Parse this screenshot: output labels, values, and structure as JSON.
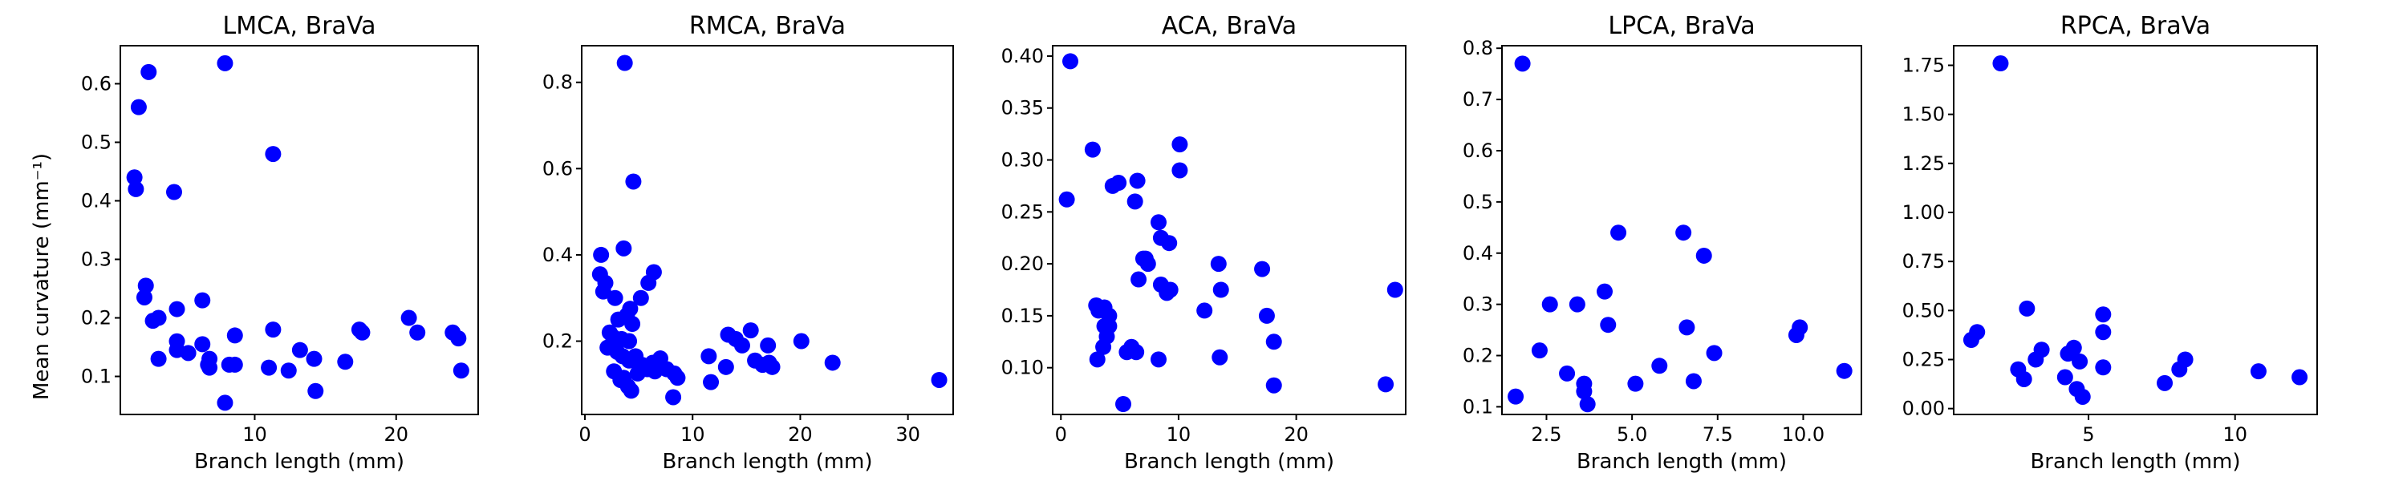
{
  "chart_data": [
    {
      "type": "scatter",
      "title": "LMCA, BraVa",
      "xlabel": "Branch length (mm)",
      "ylabel": "Mean curvature (mm⁻¹)",
      "xlim": [
        0.5,
        25.8
      ],
      "ylim": [
        0.035,
        0.665
      ],
      "xticks": [
        10,
        20
      ],
      "yticks": [
        0.1,
        0.2,
        0.3,
        0.4,
        0.5,
        0.6
      ],
      "ytick_labels": [
        "0.1",
        "0.2",
        "0.3",
        "0.4",
        "0.5",
        "0.6"
      ],
      "marker_color": "#0000ff",
      "x": [
        1.8,
        7.9,
        1.5,
        1.6,
        4.3,
        11.3,
        2.5,
        2.3,
        2.2,
        6.3,
        4.5,
        3.2,
        2.8,
        4.5,
        6.3,
        6.8,
        8.6,
        11.3,
        6.7,
        5.3,
        6.8,
        3.2,
        4.5,
        8.2,
        8.6,
        11.0,
        12.4,
        13.2,
        14.2,
        16.4,
        17.4,
        17.6,
        20.9,
        21.5,
        24.0,
        24.4,
        24.6,
        14.3,
        7.9
      ],
      "y": [
        0.56,
        0.635,
        0.44,
        0.42,
        0.415,
        0.48,
        0.62,
        0.255,
        0.235,
        0.23,
        0.215,
        0.2,
        0.195,
        0.16,
        0.155,
        0.13,
        0.17,
        0.18,
        0.12,
        0.14,
        0.115,
        0.13,
        0.145,
        0.12,
        0.12,
        0.115,
        0.11,
        0.145,
        0.13,
        0.125,
        0.18,
        0.175,
        0.2,
        0.175,
        0.175,
        0.165,
        0.11,
        0.075,
        0.055
      ]
    },
    {
      "type": "scatter",
      "title": "RMCA, BraVa",
      "xlabel": "Branch length (mm)",
      "ylabel": "",
      "xlim": [
        -0.3,
        34.2
      ],
      "ylim": [
        0.03,
        0.885
      ],
      "xticks": [
        0,
        10,
        20,
        30
      ],
      "yticks": [
        0.2,
        0.4,
        0.6,
        0.8
      ],
      "ytick_labels": [
        "0.2",
        "0.4",
        "0.6",
        "0.8"
      ],
      "marker_color": "#0000ff",
      "x": [
        3.7,
        4.5,
        1.5,
        3.6,
        1.4,
        1.9,
        1.7,
        2.8,
        6.4,
        5.9,
        4.2,
        5.2,
        3.1,
        3.9,
        4.4,
        2.3,
        2.6,
        3.4,
        4.1,
        2.1,
        3.0,
        3.5,
        4.1,
        4.7,
        5.3,
        5.8,
        2.7,
        3.3,
        3.6,
        4.0,
        4.9,
        6.3,
        7.0,
        7.6,
        8.3,
        8.6,
        8.2,
        6.5,
        4.3,
        11.5,
        11.7,
        13.3,
        13.1,
        14.0,
        14.6,
        15.4,
        15.8,
        16.5,
        17.1,
        17.4,
        17.0,
        20.1,
        23.0,
        32.9
      ],
      "y": [
        0.845,
        0.57,
        0.4,
        0.415,
        0.355,
        0.335,
        0.315,
        0.3,
        0.36,
        0.335,
        0.275,
        0.3,
        0.25,
        0.26,
        0.24,
        0.22,
        0.21,
        0.205,
        0.2,
        0.185,
        0.175,
        0.165,
        0.155,
        0.165,
        0.145,
        0.135,
        0.13,
        0.11,
        0.115,
        0.095,
        0.125,
        0.15,
        0.16,
        0.135,
        0.125,
        0.115,
        0.07,
        0.13,
        0.085,
        0.165,
        0.105,
        0.215,
        0.14,
        0.205,
        0.19,
        0.225,
        0.155,
        0.145,
        0.15,
        0.14,
        0.19,
        0.2,
        0.15,
        0.11
      ]
    },
    {
      "type": "scatter",
      "title": "ACA, BraVa",
      "xlabel": "Branch length (mm)",
      "ylabel": "",
      "xlim": [
        -0.7,
        29.3
      ],
      "ylim": [
        0.055,
        0.41
      ],
      "xticks": [
        0,
        10,
        20
      ],
      "yticks": [
        0.1,
        0.15,
        0.2,
        0.25,
        0.3,
        0.35,
        0.4
      ],
      "ytick_labels": [
        "0.10",
        "0.15",
        "0.20",
        "0.25",
        "0.30",
        "0.35",
        "0.40"
      ],
      "marker_color": "#0000ff",
      "x": [
        0.8,
        0.5,
        2.7,
        3.0,
        3.7,
        4.4,
        4.9,
        4.1,
        6.5,
        6.3,
        7.2,
        8.3,
        8.5,
        9.3,
        9.0,
        10.1,
        10.1,
        7.0,
        7.4,
        6.6,
        8.5,
        9.2,
        3.2,
        4.1,
        3.9,
        3.7,
        3.6,
        3.1,
        5.6,
        6.0,
        6.4,
        8.3,
        5.3,
        12.2,
        13.4,
        13.6,
        13.5,
        17.1,
        17.5,
        18.1,
        18.1,
        27.6,
        28.4
      ],
      "y": [
        0.395,
        0.262,
        0.31,
        0.16,
        0.158,
        0.275,
        0.278,
        0.14,
        0.28,
        0.26,
        0.205,
        0.24,
        0.225,
        0.175,
        0.172,
        0.315,
        0.29,
        0.205,
        0.2,
        0.185,
        0.18,
        0.22,
        0.155,
        0.15,
        0.13,
        0.14,
        0.12,
        0.108,
        0.115,
        0.12,
        0.115,
        0.108,
        0.065,
        0.155,
        0.2,
        0.175,
        0.11,
        0.195,
        0.15,
        0.125,
        0.083,
        0.084,
        0.175
      ]
    },
    {
      "type": "scatter",
      "title": "LPCA, BraVa",
      "xlabel": "Branch length (mm)",
      "ylabel": "",
      "xlim": [
        1.2,
        11.7
      ],
      "ylim": [
        0.085,
        0.805
      ],
      "xticks": [
        2.5,
        5.0,
        7.5,
        10.0
      ],
      "xtick_labels": [
        "2.5",
        "5.0",
        "7.5",
        "10.0"
      ],
      "yticks": [
        0.1,
        0.2,
        0.3,
        0.4,
        0.5,
        0.6,
        0.7,
        0.8
      ],
      "ytick_labels": [
        "0.1",
        "0.2",
        "0.3",
        "0.4",
        "0.5",
        "0.6",
        "0.7",
        "0.8"
      ],
      "marker_color": "#0000ff",
      "x": [
        1.8,
        1.6,
        2.3,
        2.6,
        3.1,
        3.4,
        3.6,
        3.6,
        3.7,
        4.2,
        4.3,
        4.6,
        5.1,
        5.8,
        6.5,
        6.6,
        6.8,
        7.1,
        7.4,
        9.8,
        9.9,
        11.2
      ],
      "y": [
        0.77,
        0.12,
        0.21,
        0.3,
        0.165,
        0.3,
        0.145,
        0.13,
        0.105,
        0.325,
        0.26,
        0.44,
        0.145,
        0.18,
        0.44,
        0.255,
        0.15,
        0.395,
        0.205,
        0.24,
        0.255,
        0.17
      ]
    },
    {
      "type": "scatter",
      "title": "RPCA, BraVa",
      "xlabel": "Branch length (mm)",
      "ylabel": "",
      "xlim": [
        0.4,
        12.8
      ],
      "ylim": [
        -0.03,
        1.85
      ],
      "xticks": [
        5,
        10
      ],
      "yticks": [
        0.0,
        0.25,
        0.5,
        0.75,
        1.0,
        1.25,
        1.5,
        1.75
      ],
      "ytick_labels": [
        "0.00",
        "0.25",
        "0.50",
        "0.75",
        "1.00",
        "1.25",
        "1.50",
        "1.75"
      ],
      "marker_color": "#0000ff",
      "x": [
        2.0,
        1.0,
        1.2,
        2.9,
        2.6,
        2.8,
        3.2,
        3.4,
        4.3,
        4.5,
        4.2,
        4.7,
        4.6,
        5.5,
        5.5,
        5.5,
        7.6,
        8.1,
        8.3,
        10.8,
        12.2,
        4.8
      ],
      "y": [
        1.76,
        0.35,
        0.39,
        0.51,
        0.2,
        0.15,
        0.25,
        0.3,
        0.28,
        0.31,
        0.16,
        0.24,
        0.1,
        0.48,
        0.39,
        0.21,
        0.13,
        0.2,
        0.25,
        0.19,
        0.16,
        0.06
      ]
    }
  ]
}
